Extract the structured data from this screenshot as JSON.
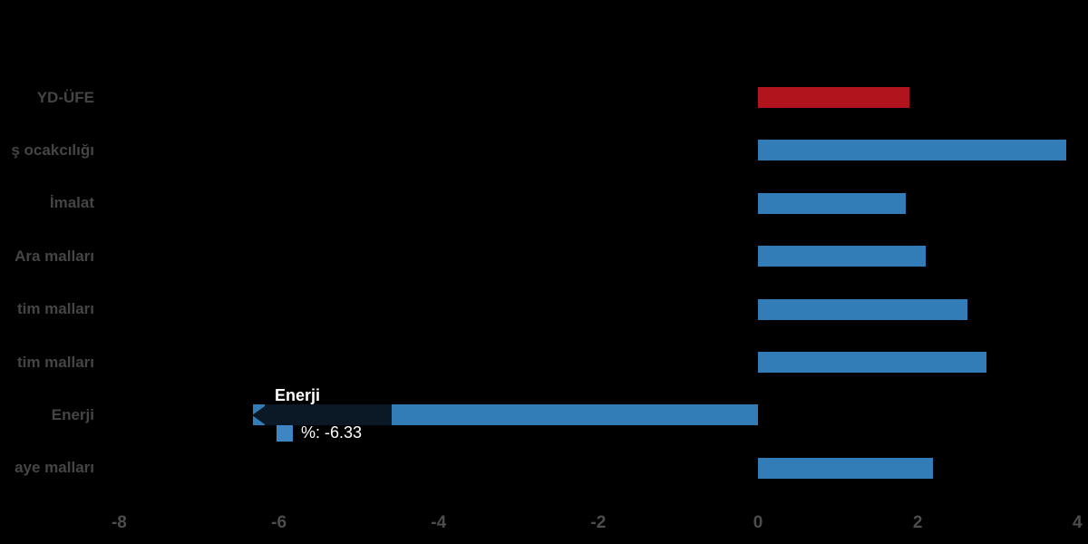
{
  "page": {
    "background_color": "#000000"
  },
  "chart_data": {
    "type": "bar",
    "orientation": "horizontal",
    "title": "",
    "xlabel": "",
    "ylabel": "",
    "categories": [
      "YD-ÜFE",
      "ş ocakcılığı",
      "İmalat",
      "Ara malları",
      "tim malları",
      "tim malları",
      "Enerji",
      "aye malları"
    ],
    "values": [
      1.9,
      3.86,
      1.85,
      2.1,
      2.62,
      2.86,
      -6.33,
      2.19
    ],
    "bar_colors": [
      "#b1141d",
      "#327cb8",
      "#327cb8",
      "#327cb8",
      "#327cb8",
      "#327cb8",
      "#327cb8",
      "#327cb8"
    ],
    "x_ticks": [
      -8,
      -6,
      -4,
      -2,
      0,
      2,
      4
    ],
    "xlim": [
      -9.5,
      4.15
    ],
    "grid": false,
    "legend_position": "none",
    "label_color": "#454545",
    "tick_color": "#4d4d4d"
  },
  "tooltip": {
    "title": "Enerji",
    "value_label": "%: -6.33",
    "marker_color": "#3d86c3",
    "background": "rgba(0,0,0,0.80)",
    "text_color": "#ffffff",
    "target_category": "Enerji",
    "target_index": 6
  }
}
